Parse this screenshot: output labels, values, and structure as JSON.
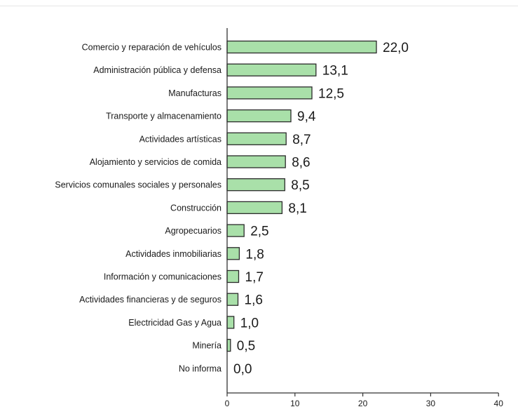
{
  "chart_data": {
    "type": "bar",
    "orientation": "horizontal",
    "categories": [
      "Comercio y reparación de vehículos",
      "Administración pública y defensa",
      "Manufacturas",
      "Transporte  y almacenamiento",
      "Actividades artísticas",
      "Alojamiento y servicios de comida",
      "Servicios comunales  sociales y personales",
      "Construcción",
      "Agropecuarios",
      "Actividades inmobiliarias",
      "Información y comunicaciones",
      "Actividades financieras y de seguros",
      "Electricidad  Gas y Agua",
      "Minería",
      "No informa"
    ],
    "values": [
      22.0,
      13.1,
      12.5,
      9.4,
      8.7,
      8.6,
      8.5,
      8.1,
      2.5,
      1.8,
      1.7,
      1.6,
      1.0,
      0.5,
      0.0
    ],
    "value_labels": [
      "22,0",
      "13,1",
      "12,5",
      "9,4",
      "8,7",
      "8,6",
      "8,5",
      "8,1",
      "2,5",
      "1,8",
      "1,7",
      "1,6",
      "1,0",
      "0,5",
      "0,0"
    ],
    "xlim": [
      0,
      40
    ],
    "xticks": [
      0,
      10,
      20,
      30,
      40
    ],
    "title": "",
    "xlabel": "",
    "ylabel": "",
    "grid": false,
    "legend": "none",
    "colors": {
      "bar_fill": "#a9e0a9",
      "bar_stroke": "#2b2b2b",
      "axis": "#333333"
    }
  }
}
